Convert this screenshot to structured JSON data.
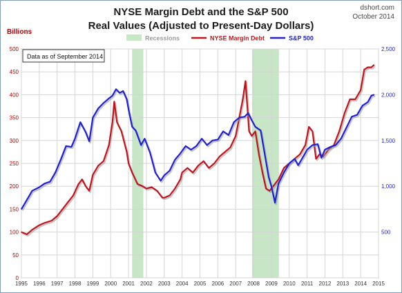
{
  "chart_data": {
    "type": "line",
    "title": "NYSE Margin Debt and the S&P 500",
    "subtitle": "Real Values (Adjusted to Present-Day Dollars)",
    "source": "dshort.com",
    "date": "October 2014",
    "ylabel_left": "Billions",
    "note": "Data as of September 2014",
    "legend": [
      {
        "label": "Recessions",
        "color": "#c6e6c6",
        "kind": "box"
      },
      {
        "label": "NYSE Margin Debt",
        "color": "#c0141c",
        "kind": "line"
      },
      {
        "label": "S&P 500",
        "color": "#1f1fd6",
        "kind": "line"
      }
    ],
    "legend_position": "top",
    "grid": true,
    "xlim": [
      1995,
      2015
    ],
    "x_ticks": [
      1995,
      1996,
      1997,
      1998,
      1999,
      2000,
      2001,
      2002,
      2003,
      2004,
      2005,
      2006,
      2007,
      2008,
      2009,
      2010,
      2011,
      2012,
      2013,
      2014,
      2015
    ],
    "ylim_left": [
      0,
      500
    ],
    "y_ticks_left": [
      0,
      50,
      100,
      150,
      200,
      250,
      300,
      350,
      400,
      450,
      500
    ],
    "ylim_right": [
      0,
      2500
    ],
    "y_ticks_right": [
      {
        "value": 500,
        "label": "500"
      },
      {
        "value": 1000,
        "label": "1,000"
      },
      {
        "value": 1500,
        "label": "1,500"
      },
      {
        "value": 2000,
        "label": "2,000"
      },
      {
        "value": 2500,
        "label": "2,500"
      }
    ],
    "recessions": [
      [
        2001.2,
        2001.83
      ],
      [
        2007.92,
        2009.42
      ]
    ],
    "series": [
      {
        "name": "NYSE Margin Debt",
        "axis": "left",
        "color": "#c0141c",
        "x": [
          1995.0,
          1995.3,
          1995.6,
          1996.0,
          1996.3,
          1996.7,
          1997.0,
          1997.3,
          1997.6,
          1997.9,
          1998.2,
          1998.4,
          1998.6,
          1998.8,
          1999.0,
          1999.3,
          1999.6,
          1999.9,
          2000.1,
          2000.2,
          2000.35,
          2000.6,
          2000.9,
          2001.0,
          2001.2,
          2001.5,
          2001.8,
          2002.0,
          2002.3,
          2002.6,
          2002.9,
          2003.0,
          2003.3,
          2003.6,
          2003.9,
          2004.0,
          2004.3,
          2004.6,
          2004.9,
          2005.2,
          2005.5,
          2005.8,
          2006.1,
          2006.4,
          2006.7,
          2007.0,
          2007.2,
          2007.4,
          2007.55,
          2007.75,
          2007.9,
          2008.1,
          2008.3,
          2008.5,
          2008.7,
          2008.9,
          2009.1,
          2009.4,
          2009.7,
          2010.0,
          2010.3,
          2010.6,
          2010.9,
          2011.1,
          2011.3,
          2011.5,
          2011.7,
          2011.9,
          2012.2,
          2012.5,
          2012.8,
          2013.1,
          2013.4,
          2013.7,
          2014.0,
          2014.2,
          2014.4,
          2014.6,
          2014.75
        ],
        "values": [
          100,
          95,
          105,
          115,
          120,
          125,
          135,
          150,
          165,
          180,
          205,
          215,
          200,
          190,
          225,
          245,
          255,
          290,
          340,
          385,
          340,
          320,
          275,
          250,
          230,
          205,
          200,
          195,
          198,
          190,
          175,
          175,
          180,
          195,
          215,
          230,
          240,
          230,
          245,
          255,
          240,
          250,
          265,
          275,
          285,
          310,
          350,
          390,
          430,
          320,
          310,
          320,
          270,
          230,
          195,
          190,
          200,
          215,
          240,
          250,
          260,
          270,
          290,
          330,
          320,
          260,
          270,
          265,
          280,
          290,
          320,
          360,
          390,
          390,
          410,
          455,
          460,
          460,
          465
        ]
      },
      {
        "name": "S&P 500",
        "axis": "right",
        "color": "#1f1fd6",
        "x": [
          1995.0,
          1995.3,
          1995.6,
          1996.0,
          1996.3,
          1996.6,
          1996.9,
          1997.2,
          1997.5,
          1997.8,
          1998.0,
          1998.3,
          1998.6,
          1998.8,
          1999.0,
          1999.3,
          1999.6,
          1999.9,
          2000.1,
          2000.3,
          2000.5,
          2000.7,
          2000.9,
          2001.0,
          2001.2,
          2001.4,
          2001.7,
          2001.9,
          2002.2,
          2002.5,
          2002.8,
          2003.0,
          2003.3,
          2003.6,
          2003.9,
          2004.2,
          2004.5,
          2004.8,
          2005.1,
          2005.4,
          2005.7,
          2006.0,
          2006.3,
          2006.6,
          2006.9,
          2007.2,
          2007.5,
          2007.7,
          2007.9,
          2008.1,
          2008.4,
          2008.7,
          2008.85,
          2009.0,
          2009.2,
          2009.4,
          2009.7,
          2010.0,
          2010.3,
          2010.5,
          2010.8,
          2011.0,
          2011.3,
          2011.6,
          2011.8,
          2012.0,
          2012.3,
          2012.6,
          2012.9,
          2013.2,
          2013.5,
          2013.8,
          2014.1,
          2014.4,
          2014.6,
          2014.75
        ],
        "values": [
          750,
          850,
          950,
          990,
          1030,
          1050,
          1150,
          1290,
          1440,
          1430,
          1520,
          1700,
          1590,
          1490,
          1750,
          1850,
          1910,
          1960,
          1990,
          2060,
          2020,
          2040,
          1950,
          1840,
          1650,
          1610,
          1450,
          1520,
          1370,
          1150,
          1060,
          1120,
          1170,
          1290,
          1360,
          1440,
          1400,
          1440,
          1520,
          1450,
          1500,
          1510,
          1600,
          1560,
          1700,
          1750,
          1760,
          1800,
          1720,
          1650,
          1610,
          1270,
          1100,
          1000,
          820,
          1030,
          1150,
          1250,
          1300,
          1230,
          1330,
          1400,
          1450,
          1460,
          1310,
          1400,
          1430,
          1450,
          1520,
          1640,
          1760,
          1780,
          1880,
          1920,
          1990,
          2000
        ]
      }
    ]
  }
}
